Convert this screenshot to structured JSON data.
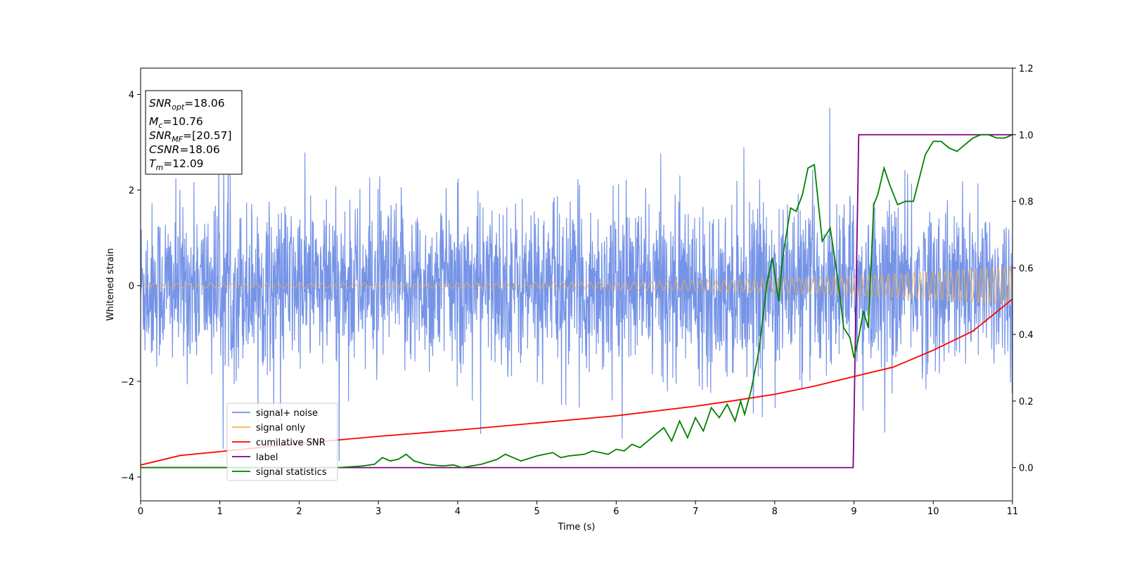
{
  "chart_data": {
    "type": "line",
    "xlabel": "Time (s)",
    "ylabel": "Whitened strain",
    "xlim": [
      0,
      11
    ],
    "ylim_left": [
      -4.5,
      4.55
    ],
    "ylim_right": [
      -0.1,
      1.2
    ],
    "x_ticks": [
      "0",
      "1",
      "2",
      "3",
      "4",
      "5",
      "6",
      "7",
      "8",
      "9",
      "10",
      "11"
    ],
    "y_left_ticks": [
      "4",
      "2",
      "0",
      "−2",
      "−4"
    ],
    "y_left_tick_values": [
      4,
      2,
      0,
      -2,
      -4
    ],
    "y_right_ticks": [
      "1.2",
      "1.0",
      "0.8",
      "0.6",
      "0.4",
      "0.2",
      "0.0"
    ],
    "y_right_tick_values": [
      1.2,
      1.0,
      0.8,
      0.6,
      0.4,
      0.2,
      0.0
    ],
    "annotation": {
      "lines": [
        {
          "main": "SNR",
          "sub": "opt",
          "value": "=18.06"
        },
        {
          "main": "M",
          "sub": "c",
          "value": "=10.76"
        },
        {
          "main": "SNR",
          "sub": "MF",
          "value": "=[20.57]"
        },
        {
          "main": "CSNR",
          "sub": "",
          "value": "=18.06"
        },
        {
          "main": "T",
          "sub": "m",
          "value": "=12.09"
        }
      ]
    },
    "legend_position": "lower-left",
    "series": [
      {
        "name": "signal+ noise",
        "axis": "left",
        "color": "#6f8ee6",
        "kind": "noise",
        "sigma": 0.85,
        "note_range": [
          -4.1,
          4.15
        ]
      },
      {
        "name": "signal only",
        "axis": "left",
        "color": "#f5b041",
        "kind": "chirp",
        "amp_start": 0.05,
        "amp_end": 0.4,
        "f_start": 7,
        "f_end": 14
      },
      {
        "name": "cumilative SNR",
        "axis": "left",
        "color": "#ff0000",
        "x": [
          0,
          0.5,
          1,
          2,
          3,
          4,
          5,
          6,
          7,
          7.5,
          8,
          8.5,
          9,
          9.5,
          10,
          10.5,
          11
        ],
        "y": [
          -3.75,
          -3.55,
          -3.47,
          -3.3,
          -3.15,
          -3.02,
          -2.87,
          -2.72,
          -2.52,
          -2.4,
          -2.27,
          -2.1,
          -1.9,
          -1.7,
          -1.35,
          -0.95,
          -0.28
        ]
      },
      {
        "name": "label",
        "axis": "right",
        "color": "#800080",
        "x": [
          0,
          8.99,
          9.06,
          11
        ],
        "y": [
          0,
          0,
          1,
          1
        ]
      },
      {
        "name": "signal statistics",
        "axis": "right",
        "color": "#008000",
        "x": [
          0,
          0.5,
          1,
          1.5,
          2,
          2.5,
          2.8,
          2.95,
          3.05,
          3.15,
          3.25,
          3.35,
          3.45,
          3.6,
          3.8,
          3.95,
          4.05,
          4.3,
          4.5,
          4.6,
          4.7,
          4.8,
          5.0,
          5.2,
          5.3,
          5.4,
          5.6,
          5.7,
          5.9,
          6.0,
          6.1,
          6.2,
          6.3,
          6.4,
          6.5,
          6.6,
          6.7,
          6.8,
          6.9,
          7.0,
          7.1,
          7.2,
          7.3,
          7.4,
          7.5,
          7.57,
          7.62,
          7.7,
          7.8,
          7.9,
          7.97,
          8.05,
          8.1,
          8.2,
          8.27,
          8.35,
          8.42,
          8.5,
          8.6,
          8.7,
          8.8,
          8.87,
          8.95,
          9.0,
          9.05,
          9.12,
          9.18,
          9.25,
          9.3,
          9.38,
          9.45,
          9.55,
          9.65,
          9.75,
          9.9,
          10.0,
          10.1,
          10.2,
          10.3,
          10.4,
          10.5,
          10.6,
          10.7,
          10.8,
          10.9,
          11.0
        ],
        "y": [
          0.0,
          0.0,
          0.0,
          0.0,
          0.0,
          0.0,
          0.005,
          0.01,
          0.03,
          0.02,
          0.025,
          0.04,
          0.02,
          0.01,
          0.005,
          0.008,
          0.0,
          0.01,
          0.025,
          0.04,
          0.03,
          0.02,
          0.035,
          0.045,
          0.03,
          0.035,
          0.04,
          0.05,
          0.04,
          0.055,
          0.05,
          0.07,
          0.06,
          0.08,
          0.1,
          0.12,
          0.08,
          0.14,
          0.09,
          0.15,
          0.11,
          0.18,
          0.15,
          0.19,
          0.14,
          0.2,
          0.16,
          0.23,
          0.35,
          0.55,
          0.63,
          0.5,
          0.63,
          0.78,
          0.77,
          0.82,
          0.9,
          0.91,
          0.68,
          0.72,
          0.56,
          0.42,
          0.39,
          0.33,
          0.38,
          0.47,
          0.42,
          0.79,
          0.82,
          0.9,
          0.85,
          0.79,
          0.8,
          0.8,
          0.94,
          0.98,
          0.98,
          0.96,
          0.95,
          0.97,
          0.99,
          1.0,
          1.0,
          0.99,
          0.99,
          1.0
        ]
      }
    ]
  }
}
